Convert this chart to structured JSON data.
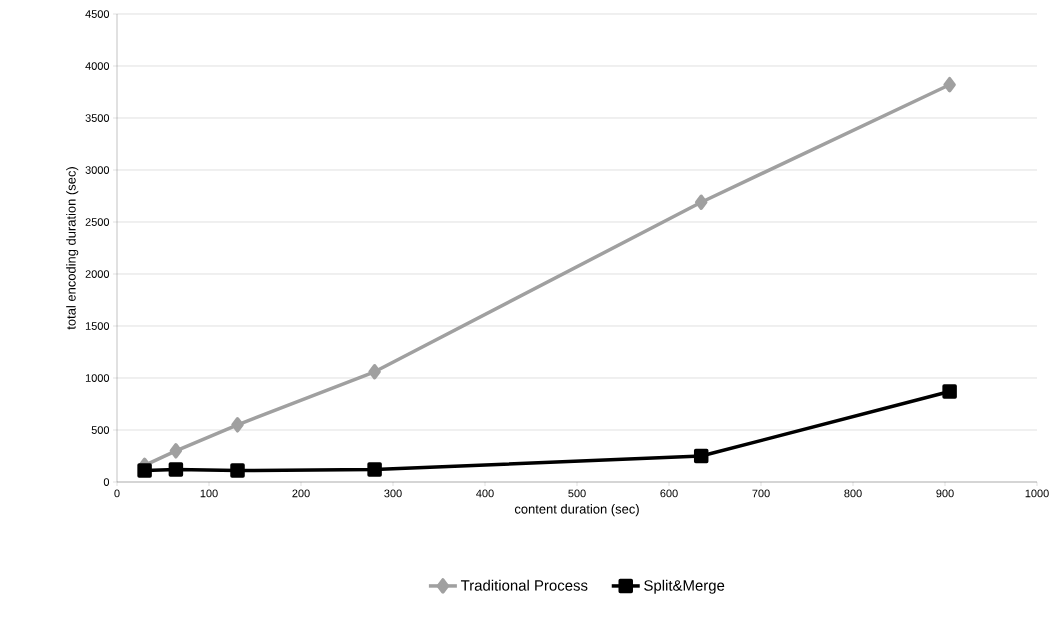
{
  "chart_data": {
    "type": "line",
    "xlabel": "content duration (sec)",
    "ylabel": "total encoding duration (sec)",
    "xlim": [
      0,
      1000
    ],
    "xticks": [
      0,
      100,
      200,
      300,
      400,
      500,
      600,
      700,
      800,
      900,
      1000
    ],
    "ylim": [
      0,
      4500
    ],
    "yticks": [
      0,
      500,
      1000,
      1500,
      2000,
      2500,
      3000,
      3500,
      4000,
      4500
    ],
    "grid": "y",
    "legend": "bottom",
    "series": [
      {
        "name": "Traditional Process",
        "color": "#a0a0a0",
        "marker": "diamond",
        "x": [
          30,
          64,
          131,
          280,
          635,
          905
        ],
        "values": [
          160,
          300,
          550,
          1060,
          2690,
          3820
        ]
      },
      {
        "name": "Split&Merge",
        "color": "#000000",
        "marker": "square",
        "x": [
          30,
          64,
          131,
          280,
          635,
          905
        ],
        "values": [
          110,
          120,
          110,
          120,
          250,
          870
        ]
      }
    ]
  }
}
